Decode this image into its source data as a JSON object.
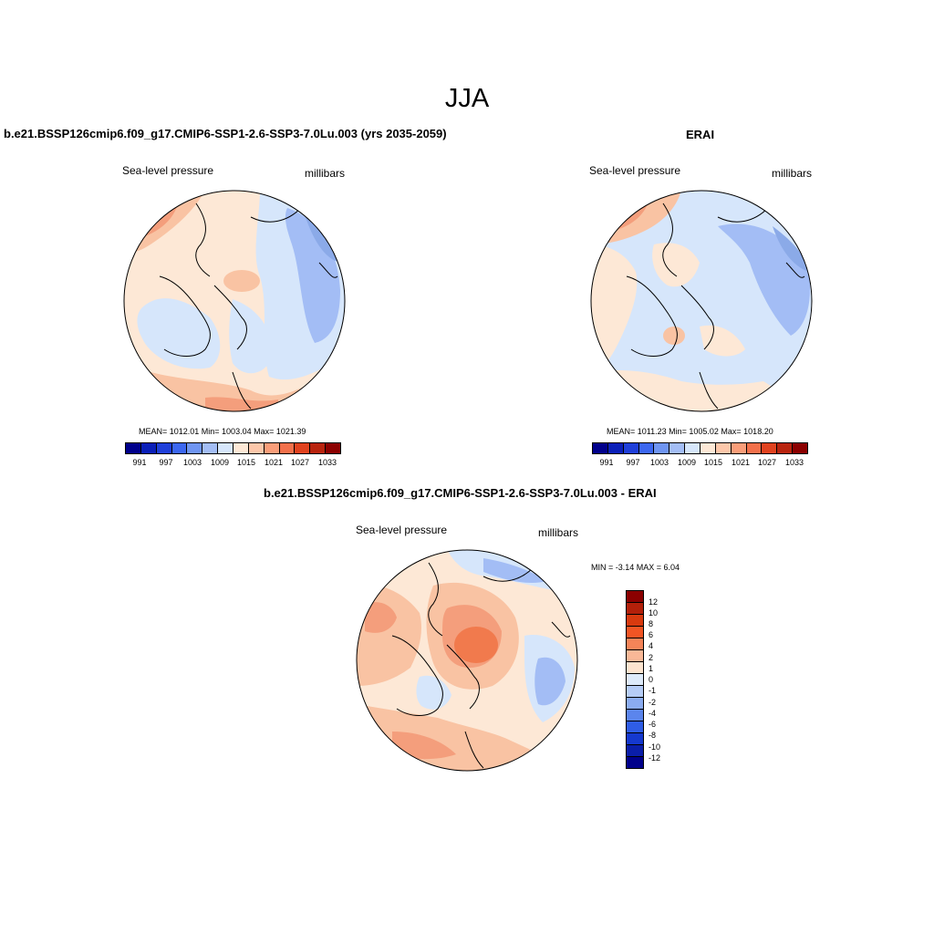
{
  "page": {
    "title": "JJA"
  },
  "panels": [
    {
      "title": "b.e21.BSSP126cmip6.f09_g17.CMIP6-SSP1-2.6-SSP3-7.0Lu.003 (yrs 2035-2059)",
      "left_label": "Sea-level pressure",
      "right_label": "millibars",
      "stats": "MEAN= 1012.01  Min= 1003.04  Max= 1021.39",
      "colorbar_labels": [
        "991",
        "997",
        "1003",
        "1009",
        "1015",
        "1021",
        "1027",
        "1033"
      ]
    },
    {
      "title": "ERAI",
      "left_label": "Sea-level pressure",
      "right_label": "millibars",
      "stats": "MEAN= 1011.23  Min= 1005.02  Max= 1018.20",
      "colorbar_labels": [
        "991",
        "997",
        "1003",
        "1009",
        "1015",
        "1021",
        "1027",
        "1033"
      ]
    },
    {
      "title": "b.e21.BSSP126cmip6.f09_g17.CMIP6-SSP1-2.6-SSP3-7.0Lu.003 - ERAI",
      "left_label": "Sea-level pressure",
      "right_label": "millibars",
      "stats": "MIN =  -3.14 MAX =   6.04",
      "colorbar_labels": [
        "12",
        "10",
        "8",
        "6",
        "4",
        "2",
        "1",
        "0",
        "-1",
        "-2",
        "-4",
        "-6",
        "-8",
        "-10",
        "-12"
      ]
    }
  ],
  "colors": {
    "abs_scale": [
      "#00008b",
      "#0a1fb8",
      "#1f3fd9",
      "#3c67f0",
      "#6f95f2",
      "#a3bdf5",
      "#d6e6fb",
      "#fde8d6",
      "#fcc7aa",
      "#f99d79",
      "#f2704b",
      "#e0421f",
      "#b8230e",
      "#8b0000"
    ],
    "diff_scale": [
      "#8b0000",
      "#b3200a",
      "#d83a0f",
      "#f25524",
      "#f58458",
      "#f9b897",
      "#fde4cf",
      "#deebfa",
      "#b6cdf6",
      "#8bacf1",
      "#5b85ed",
      "#2f5de6",
      "#1539cf",
      "#0a1eaa",
      "#00008b"
    ],
    "map_light_blue": "#d6e6fb",
    "map_mid_blue": "#a3bdf5",
    "map_blue": "#8baae8",
    "map_light_red": "#fde8d6",
    "map_red": "#f9c3a3",
    "map_dark_red": "#f49e7c",
    "map_deep_red": "#f17a4d"
  }
}
